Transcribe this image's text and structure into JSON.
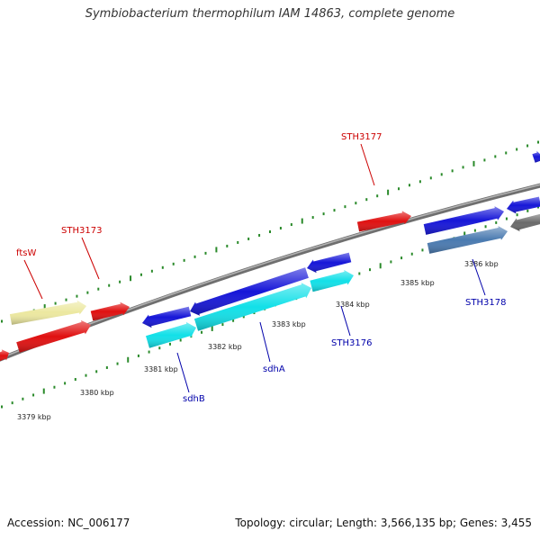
{
  "title": "Symbiobacterium thermophilum IAM 14863, complete genome",
  "footer": {
    "accession": "Accession: NC_006177",
    "summary": "Topology: circular; Length: 3,566,135 bp; Genes: 3,455"
  },
  "colors": {
    "backbone": "#8a8a8a",
    "tick": "#2a8a2a",
    "forward_label": "#cc0000",
    "reverse_label": "#0000aa",
    "red_gene": "#e01010",
    "blue_gene": "#1616d8",
    "cyan_gene": "#12e0e8",
    "pale_gene": "#ece8a0",
    "steel_gene": "#4a7ab0",
    "grey_gene": "#6a6a6a"
  },
  "scale": {
    "labels": [
      "3379 kbp",
      "3380 kbp",
      "3381 kbp",
      "3382 kbp",
      "3383 kbp",
      "3384 kbp",
      "3385 kbp",
      "3386 kbp"
    ]
  },
  "genes": [
    {
      "name": "ftsW",
      "strand": "forward",
      "color": "pale_gene",
      "icon": "gene-arrow-icon"
    },
    {
      "name": "STH3173",
      "strand": "forward",
      "color": "red_gene",
      "icon": "gene-arrow-icon"
    },
    {
      "name": "STH3177",
      "strand": "forward",
      "color": "red_gene",
      "icon": "gene-arrow-icon"
    },
    {
      "name": "sdhB",
      "strand": "reverse",
      "color": "cyan_gene",
      "icon": "gene-arrow-icon"
    },
    {
      "name": "sdhA",
      "strand": "reverse",
      "color": "cyan_gene",
      "icon": "gene-arrow-icon"
    },
    {
      "name": "STH3176",
      "strand": "reverse",
      "color": "cyan_gene",
      "icon": "gene-arrow-icon"
    },
    {
      "name": "STH3178",
      "strand": "reverse",
      "color": "steel_gene",
      "icon": "gene-arrow-icon"
    }
  ]
}
